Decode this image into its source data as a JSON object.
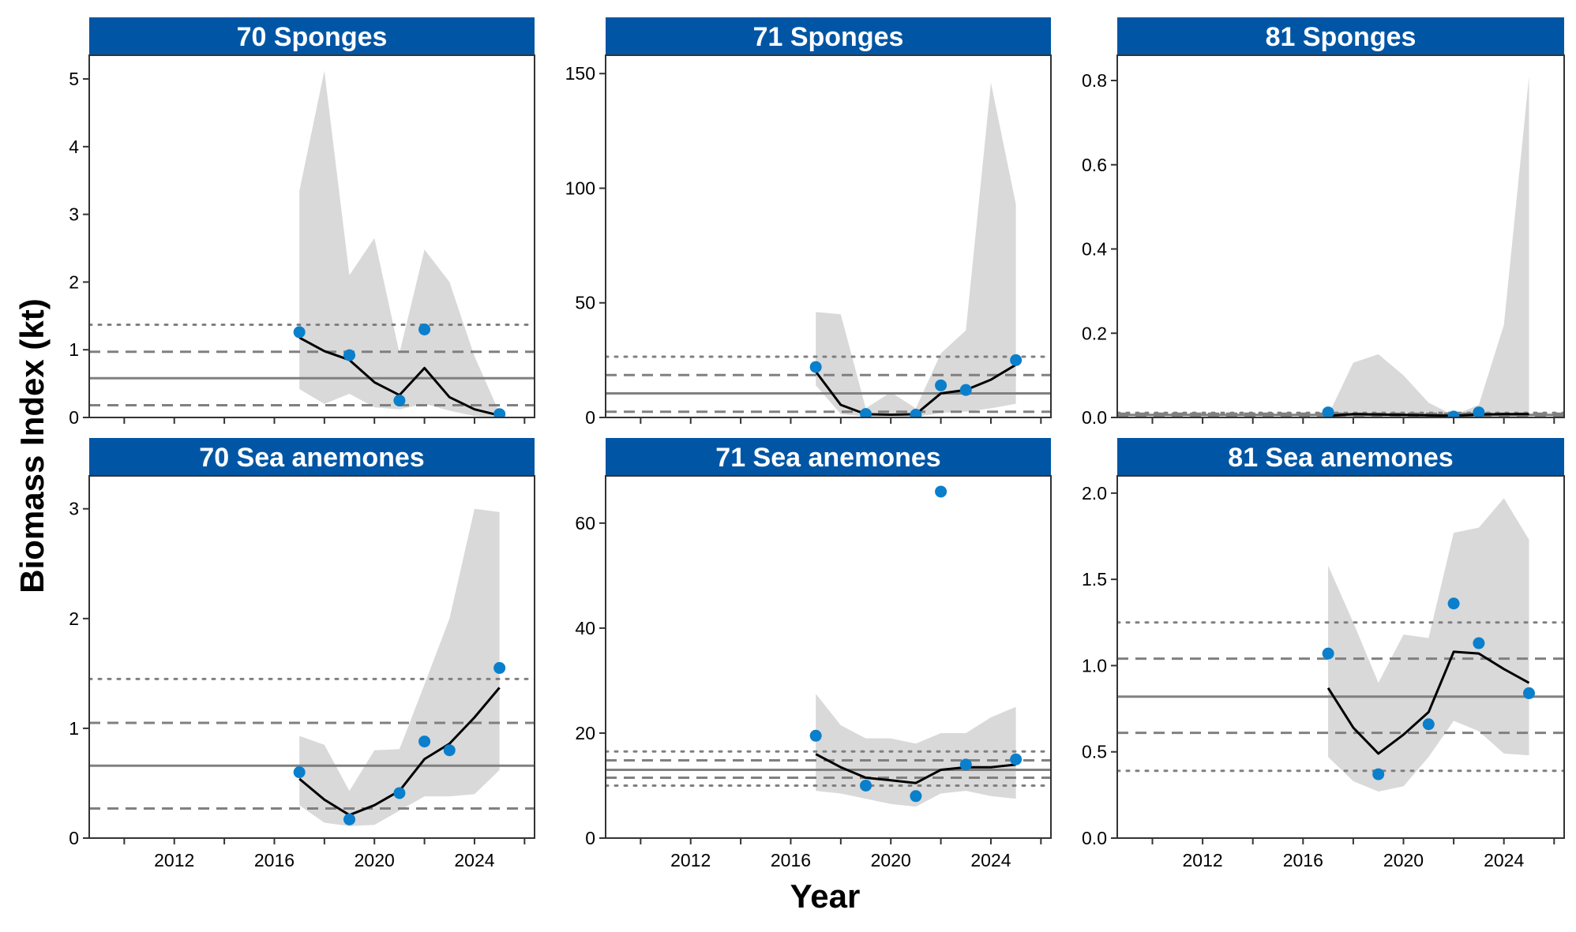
{
  "chart_data": {
    "type": "line",
    "xlabel": "Year",
    "ylabel": "Biomass Index (kt)",
    "colors": {
      "strip": "#0056a4",
      "ribbon": "#d9d9d9",
      "points": "#0a7fcc",
      "line": "#000000",
      "reference": "#808080"
    },
    "xlim": [
      2008.6,
      2026.4
    ],
    "x_ticks": [
      2012,
      2016,
      2020,
      2024
    ],
    "x_minor_ticks": [
      2010,
      2014,
      2018,
      2022,
      2026
    ],
    "panels": [
      {
        "title": "70 Sponges",
        "ylim": [
          0,
          5.35
        ],
        "y_ticks": [
          {
            "v": 0,
            "label": "0"
          },
          {
            "v": 1,
            "label": "1"
          },
          {
            "v": 2,
            "label": "2"
          },
          {
            "v": 3,
            "label": "3"
          },
          {
            "v": 4,
            "label": "4"
          },
          {
            "v": 5,
            "label": "5"
          }
        ],
        "ribbon": {
          "x": [
            2017,
            2018,
            2019,
            2020,
            2021,
            2022,
            2023,
            2024,
            2025
          ],
          "upper": [
            3.35,
            5.12,
            2.1,
            2.65,
            0.95,
            2.48,
            2.0,
            0.9,
            0.07
          ],
          "lower": [
            0.42,
            0.2,
            0.35,
            0.15,
            0.12,
            0.2,
            0.1,
            0.02,
            0.0
          ]
        },
        "fit": {
          "x": [
            2017,
            2018,
            2019,
            2020,
            2021,
            2022,
            2023,
            2024,
            2025
          ],
          "y": [
            1.18,
            0.98,
            0.85,
            0.52,
            0.33,
            0.73,
            0.3,
            0.12,
            0.03
          ]
        },
        "observed": {
          "x": [
            2017,
            2019,
            2021,
            2022,
            2025
          ],
          "y": [
            1.26,
            0.92,
            0.25,
            1.3,
            0.05
          ]
        },
        "reference": {
          "mean": 0.58,
          "dashed": [
            0.18,
            0.97
          ],
          "dotted": [
            1.37
          ]
        }
      },
      {
        "title": "71 Sponges",
        "ylim": [
          0,
          158
        ],
        "y_ticks": [
          {
            "v": 0,
            "label": "0"
          },
          {
            "v": 50,
            "label": "50"
          },
          {
            "v": 100,
            "label": "100"
          },
          {
            "v": 150,
            "label": "150"
          }
        ],
        "ribbon": {
          "x": [
            2017,
            2018,
            2019,
            2020,
            2021,
            2022,
            2023,
            2024,
            2025
          ],
          "upper": [
            46,
            45,
            4,
            11,
            4,
            28,
            38,
            146,
            93
          ],
          "lower": [
            14,
            1.5,
            0.3,
            0.2,
            0.2,
            2,
            2.5,
            4,
            6
          ]
        },
        "fit": {
          "x": [
            2017,
            2018,
            2019,
            2020,
            2021,
            2022,
            2023,
            2024,
            2025
          ],
          "y": [
            20,
            5.5,
            1.4,
            1.2,
            1.4,
            10.5,
            12,
            16.5,
            23
          ]
        },
        "observed": {
          "x": [
            2017,
            2019,
            2021,
            2022,
            2023,
            2025
          ],
          "y": [
            22,
            1.5,
            1.2,
            14,
            12,
            25
          ]
        },
        "reference": {
          "mean": 10.5,
          "dashed": [
            2.5,
            18.5
          ],
          "dotted": [
            26.5
          ]
        }
      },
      {
        "title": "81 Sponges",
        "ylim": [
          0,
          0.86
        ],
        "y_ticks": [
          {
            "v": 0,
            "label": "0.0"
          },
          {
            "v": 0.2,
            "label": "0.2"
          },
          {
            "v": 0.4,
            "label": "0.4"
          },
          {
            "v": 0.6,
            "label": "0.6"
          },
          {
            "v": 0.8,
            "label": "0.8"
          }
        ],
        "ribbon": {
          "x": [
            2017,
            2018,
            2019,
            2020,
            2021,
            2022,
            2023,
            2024,
            2025
          ],
          "upper": [
            0.005,
            0.13,
            0.15,
            0.1,
            0.035,
            0.005,
            0.03,
            0.22,
            0.81
          ],
          "lower": [
            0.0,
            0.0,
            0.0,
            0.0,
            0.0,
            0.0,
            0.0,
            0.0,
            0.0
          ]
        },
        "fit": {
          "x": [
            2017,
            2018,
            2019,
            2020,
            2021,
            2022,
            2023,
            2024,
            2025
          ],
          "y": [
            0.004,
            0.008,
            0.007,
            0.006,
            0.005,
            0.004,
            0.007,
            0.008,
            0.008
          ]
        },
        "observed": {
          "x": [
            2017,
            2022,
            2023
          ],
          "y": [
            0.012,
            0.002,
            0.012
          ]
        },
        "reference": {
          "mean": 0.006,
          "dashed": [
            0.002,
            0.009
          ],
          "dotted": [
            0.011
          ]
        }
      },
      {
        "title": "70 Sea anemones",
        "ylim": [
          0,
          3.3
        ],
        "y_ticks": [
          {
            "v": 0,
            "label": "0"
          },
          {
            "v": 1,
            "label": "1"
          },
          {
            "v": 2,
            "label": "2"
          },
          {
            "v": 3,
            "label": "3"
          }
        ],
        "ribbon": {
          "x": [
            2017,
            2018,
            2019,
            2020,
            2021,
            2022,
            2023,
            2024,
            2025
          ],
          "upper": [
            0.93,
            0.85,
            0.43,
            0.8,
            0.81,
            1.4,
            2.0,
            3.0,
            2.97
          ],
          "lower": [
            0.3,
            0.14,
            0.11,
            0.12,
            0.25,
            0.38,
            0.38,
            0.4,
            0.62
          ]
        },
        "fit": {
          "x": [
            2017,
            2018,
            2019,
            2020,
            2021,
            2022,
            2023,
            2024,
            2025
          ],
          "y": [
            0.54,
            0.35,
            0.21,
            0.3,
            0.43,
            0.72,
            0.86,
            1.1,
            1.37
          ]
        },
        "observed": {
          "x": [
            2017,
            2019,
            2021,
            2022,
            2023,
            2025
          ],
          "y": [
            0.6,
            0.17,
            0.41,
            0.88,
            0.8,
            1.55
          ]
        },
        "reference": {
          "mean": 0.66,
          "dashed": [
            0.27,
            1.05
          ],
          "dotted": [
            1.45
          ]
        }
      },
      {
        "title": "71 Sea anemones",
        "ylim": [
          0,
          69
        ],
        "y_ticks": [
          {
            "v": 0,
            "label": "0"
          },
          {
            "v": 20,
            "label": "20"
          },
          {
            "v": 40,
            "label": "40"
          },
          {
            "v": 60,
            "label": "60"
          }
        ],
        "ribbon": {
          "x": [
            2017,
            2018,
            2019,
            2020,
            2021,
            2022,
            2023,
            2024,
            2025
          ],
          "upper": [
            27.5,
            21.5,
            19,
            19,
            18,
            20,
            20,
            23,
            25
          ],
          "lower": [
            9,
            8.5,
            7.5,
            6.5,
            6,
            8.5,
            9,
            8,
            7.5
          ]
        },
        "fit": {
          "x": [
            2017,
            2018,
            2019,
            2020,
            2021,
            2022,
            2023,
            2024,
            2025
          ],
          "y": [
            16,
            13.5,
            11.5,
            11,
            10.5,
            13,
            13.5,
            13.5,
            14
          ]
        },
        "observed": {
          "x": [
            2017,
            2019,
            2021,
            2022,
            2023,
            2025
          ],
          "y": [
            19.5,
            10,
            8,
            66,
            14,
            15
          ]
        },
        "reference": {
          "mean": 13,
          "dashed": [
            11.5,
            14.8
          ],
          "dotted": [
            10,
            16.5
          ]
        }
      },
      {
        "title": "81 Sea anemones",
        "ylim": [
          0,
          2.1
        ],
        "y_ticks": [
          {
            "v": 0,
            "label": "0.0"
          },
          {
            "v": 0.5,
            "label": "0.5"
          },
          {
            "v": 1.0,
            "label": "1.0"
          },
          {
            "v": 1.5,
            "label": "1.5"
          },
          {
            "v": 2.0,
            "label": "2.0"
          }
        ],
        "ribbon": {
          "x": [
            2017,
            2018,
            2019,
            2020,
            2021,
            2022,
            2023,
            2024,
            2025
          ],
          "upper": [
            1.58,
            1.25,
            0.9,
            1.18,
            1.16,
            1.77,
            1.8,
            1.97,
            1.73
          ],
          "lower": [
            0.47,
            0.33,
            0.27,
            0.3,
            0.47,
            0.68,
            0.62,
            0.49,
            0.48
          ]
        },
        "fit": {
          "x": [
            2017,
            2018,
            2019,
            2020,
            2021,
            2022,
            2023,
            2024,
            2025
          ],
          "y": [
            0.87,
            0.64,
            0.49,
            0.6,
            0.73,
            1.08,
            1.07,
            0.98,
            0.9
          ]
        },
        "observed": {
          "x": [
            2017,
            2019,
            2021,
            2022,
            2023,
            2025
          ],
          "y": [
            1.07,
            0.37,
            0.66,
            1.36,
            1.13,
            0.84
          ]
        },
        "reference": {
          "mean": 0.82,
          "dashed": [
            0.61,
            1.04
          ],
          "dotted": [
            0.39,
            1.25
          ]
        }
      }
    ]
  }
}
